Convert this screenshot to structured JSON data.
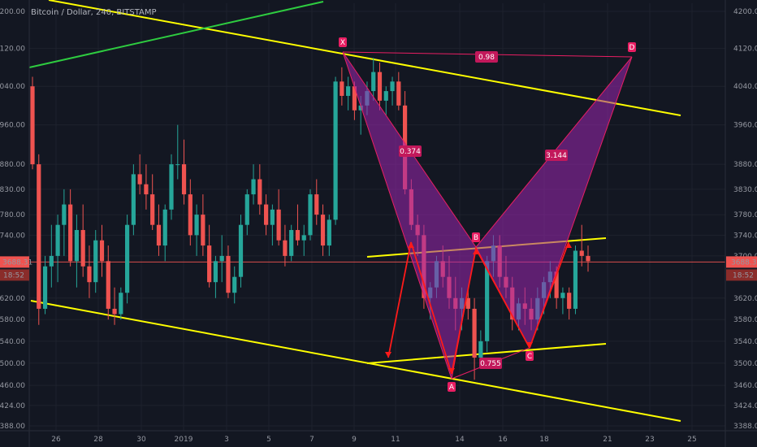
{
  "header": {
    "title": "Bitcoin / Dollar, 240, BITSTAMP"
  },
  "colors": {
    "background": "#131722",
    "grid": "#1e222d",
    "up": "#26a69a",
    "down": "#ef5350",
    "trend_yellow": "#ffff00",
    "trend_green": "#2ecc40",
    "pattern_fill": "#9c27b0",
    "pattern_stroke": "#e91e63",
    "arrow_red": "#ff1a1a",
    "price_line": "#ef5350"
  },
  "price_axis": {
    "labels": [
      "4200.00",
      "4120.00",
      "4040.00",
      "3960.00",
      "3880.00",
      "3830.00",
      "3780.00",
      "3740.00",
      "3700.00",
      "3620.00",
      "3580.00",
      "3540.00",
      "3500.00",
      "3460.00",
      "3424.00",
      "3388.00"
    ],
    "current_price": "3688.31",
    "countdown": "18:52",
    "left_partial": [
      "4200.00",
      "4120.00",
      "4040.00",
      "3960.00",
      "3880.00",
      "3830.00",
      "3780.00",
      "3740.00",
      "3620.00",
      "3580.00",
      "3540.00",
      "3500.00",
      "3460.00",
      "3424.00",
      "3388.00"
    ]
  },
  "time_axis": {
    "labels": [
      "26",
      "28",
      "30",
      "2019",
      "3",
      "5",
      "7",
      "9",
      "11",
      "14",
      "16",
      "18",
      "21",
      "23",
      "25"
    ]
  },
  "chart_data": {
    "type": "candlestick",
    "title": "Bitcoin / Dollar, 240, BITSTAMP",
    "y_scale": "log",
    "ylim": [
      3388,
      4200
    ],
    "grid": true,
    "candles": [
      [
        4040,
        4060,
        3870,
        3880
      ],
      [
        3880,
        3900,
        3570,
        3600
      ],
      [
        3600,
        3700,
        3590,
        3680
      ],
      [
        3680,
        3760,
        3640,
        3700
      ],
      [
        3700,
        3780,
        3650,
        3760
      ],
      [
        3760,
        3830,
        3700,
        3800
      ],
      [
        3800,
        3830,
        3680,
        3690
      ],
      [
        3690,
        3780,
        3640,
        3750
      ],
      [
        3750,
        3800,
        3660,
        3680
      ],
      [
        3680,
        3720,
        3620,
        3650
      ],
      [
        3650,
        3750,
        3630,
        3730
      ],
      [
        3730,
        3760,
        3660,
        3690
      ],
      [
        3690,
        3720,
        3580,
        3600
      ],
      [
        3600,
        3640,
        3570,
        3590
      ],
      [
        3590,
        3640,
        3580,
        3630
      ],
      [
        3630,
        3780,
        3610,
        3760
      ],
      [
        3760,
        3880,
        3740,
        3860
      ],
      [
        3860,
        3900,
        3820,
        3840
      ],
      [
        3840,
        3880,
        3790,
        3820
      ],
      [
        3820,
        3860,
        3750,
        3760
      ],
      [
        3760,
        3800,
        3700,
        3720
      ],
      [
        3720,
        3800,
        3690,
        3790
      ],
      [
        3790,
        3900,
        3770,
        3880
      ],
      [
        3880,
        3960,
        3850,
        3880
      ],
      [
        3880,
        3930,
        3800,
        3820
      ],
      [
        3820,
        3850,
        3720,
        3740
      ],
      [
        3740,
        3800,
        3700,
        3780
      ],
      [
        3780,
        3820,
        3700,
        3720
      ],
      [
        3720,
        3760,
        3640,
        3650
      ],
      [
        3650,
        3700,
        3620,
        3690
      ],
      [
        3690,
        3740,
        3650,
        3700
      ],
      [
        3700,
        3720,
        3620,
        3630
      ],
      [
        3630,
        3680,
        3610,
        3660
      ],
      [
        3660,
        3780,
        3640,
        3760
      ],
      [
        3760,
        3830,
        3740,
        3820
      ],
      [
        3820,
        3880,
        3800,
        3850
      ],
      [
        3850,
        3880,
        3780,
        3800
      ],
      [
        3800,
        3820,
        3740,
        3760
      ],
      [
        3760,
        3800,
        3720,
        3790
      ],
      [
        3790,
        3830,
        3720,
        3730
      ],
      [
        3730,
        3760,
        3680,
        3700
      ],
      [
        3700,
        3760,
        3690,
        3750
      ],
      [
        3750,
        3800,
        3720,
        3730
      ],
      [
        3730,
        3760,
        3700,
        3740
      ],
      [
        3740,
        3830,
        3730,
        3820
      ],
      [
        3820,
        3850,
        3760,
        3780
      ],
      [
        3780,
        3800,
        3700,
        3720
      ],
      [
        3720,
        3780,
        3700,
        3770
      ],
      [
        3770,
        4060,
        3760,
        4050
      ],
      [
        4050,
        4080,
        4000,
        4020
      ],
      [
        4020,
        4060,
        3990,
        4040
      ],
      [
        4040,
        4050,
        3970,
        3990
      ],
      [
        3990,
        4020,
        3940,
        4000
      ],
      [
        4000,
        4050,
        3980,
        4030
      ],
      [
        4030,
        4100,
        4010,
        4070
      ],
      [
        4070,
        4090,
        3990,
        4010
      ],
      [
        4010,
        4040,
        3980,
        4030
      ],
      [
        4030,
        4060,
        4000,
        4050
      ],
      [
        4050,
        4070,
        3990,
        4000
      ],
      [
        4000,
        4030,
        3820,
        3830
      ],
      [
        3830,
        3850,
        3750,
        3760
      ],
      [
        3760,
        3780,
        3700,
        3740
      ],
      [
        3740,
        3760,
        3600,
        3620
      ],
      [
        3620,
        3650,
        3580,
        3640
      ],
      [
        3640,
        3700,
        3620,
        3690
      ],
      [
        3690,
        3720,
        3640,
        3660
      ],
      [
        3660,
        3700,
        3600,
        3620
      ],
      [
        3620,
        3660,
        3560,
        3600
      ],
      [
        3600,
        3640,
        3560,
        3620
      ],
      [
        3620,
        3640,
        3580,
        3600
      ],
      [
        3600,
        3620,
        3470,
        3510
      ],
      [
        3510,
        3560,
        3500,
        3540
      ],
      [
        3540,
        3700,
        3520,
        3690
      ],
      [
        3690,
        3740,
        3660,
        3720
      ],
      [
        3720,
        3740,
        3640,
        3660
      ],
      [
        3660,
        3700,
        3620,
        3640
      ],
      [
        3640,
        3660,
        3560,
        3580
      ],
      [
        3580,
        3620,
        3560,
        3610
      ],
      [
        3610,
        3640,
        3570,
        3600
      ],
      [
        3600,
        3620,
        3560,
        3580
      ],
      [
        3580,
        3640,
        3560,
        3620
      ],
      [
        3620,
        3660,
        3590,
        3650
      ],
      [
        3650,
        3690,
        3620,
        3670
      ],
      [
        3670,
        3680,
        3600,
        3620
      ],
      [
        3620,
        3640,
        3590,
        3630
      ],
      [
        3630,
        3640,
        3580,
        3600
      ],
      [
        3600,
        3720,
        3590,
        3710
      ],
      [
        3710,
        3760,
        3680,
        3700
      ],
      [
        3700,
        3720,
        3670,
        3690
      ]
    ],
    "harmonic_pattern": {
      "points": [
        {
          "name": "X",
          "price": 4110
        },
        {
          "name": "A",
          "price": 3470
        },
        {
          "name": "B",
          "price": 3720
        },
        {
          "name": "C",
          "price": 3530
        },
        {
          "name": "D",
          "price": 4105
        }
      ],
      "ratios": [
        "0.374",
        "0.755",
        "3.144",
        "0.98"
      ]
    }
  }
}
